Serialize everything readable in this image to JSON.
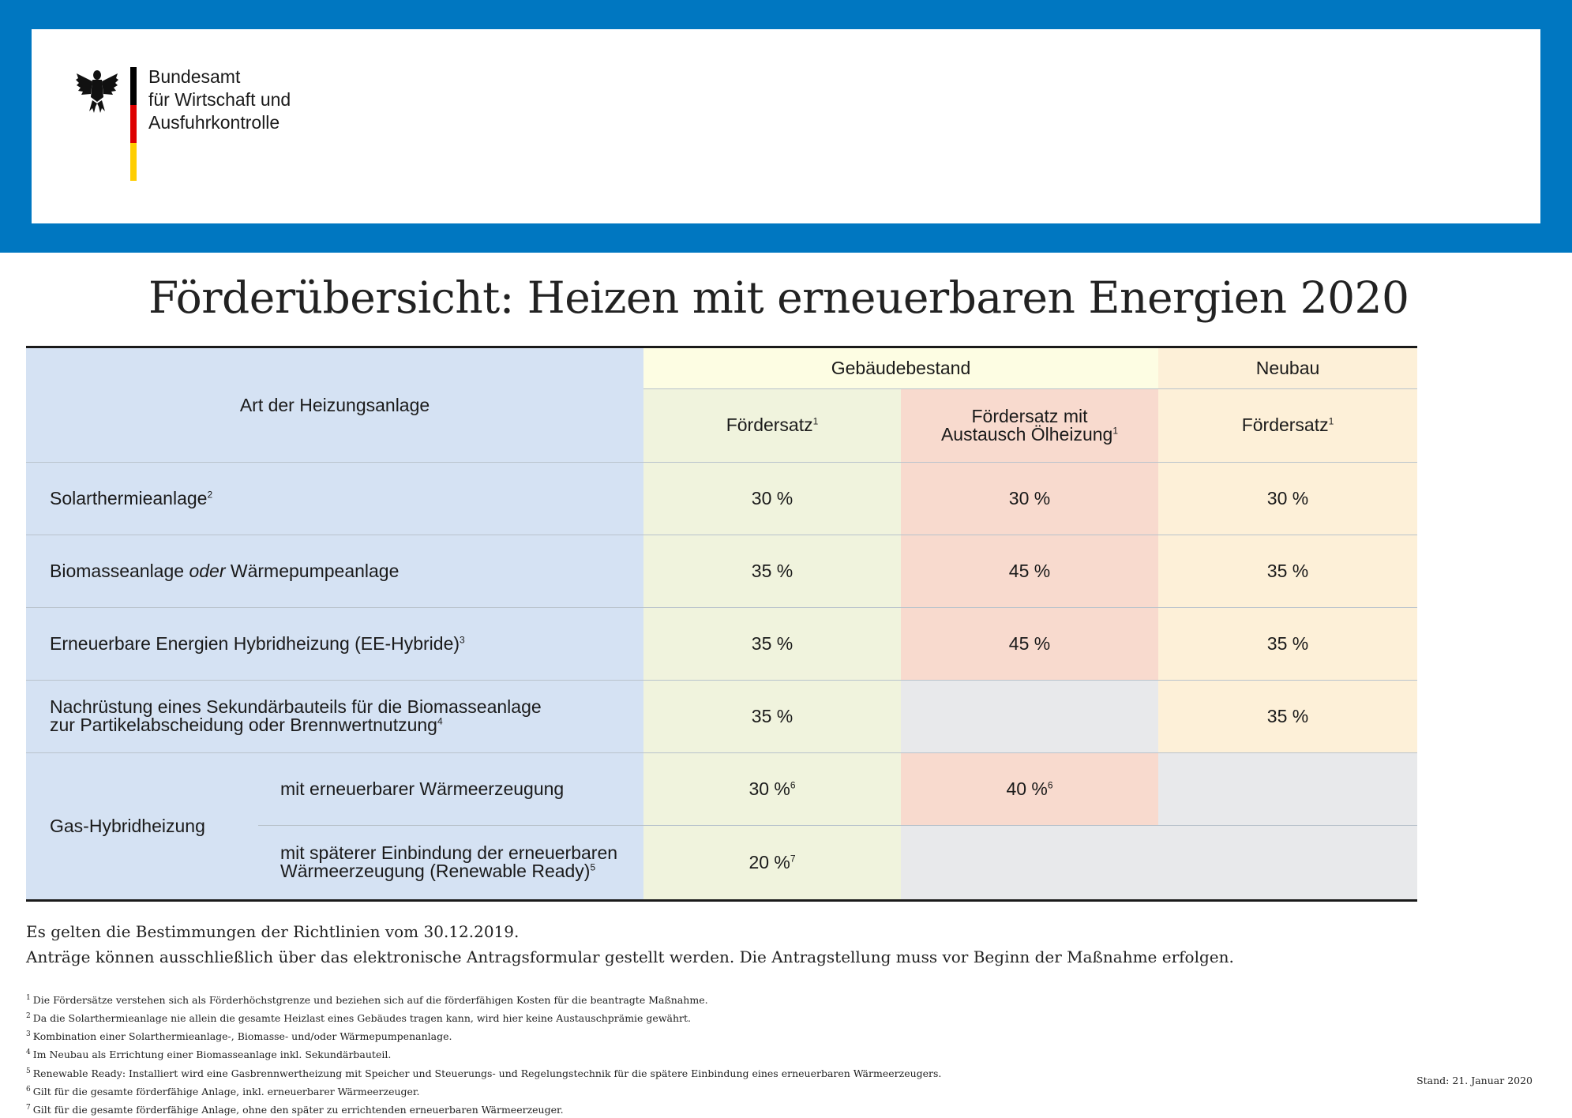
{
  "header": {
    "organization_lines": [
      "Bundesamt",
      "für Wirtschaft und",
      "Ausfuhrkontrolle"
    ],
    "logo_icon": "federal-eagle-icon",
    "flag_colors": [
      "#000000",
      "#dd0000",
      "#ffce00"
    ],
    "banner_color": "#0077c1"
  },
  "title": "Förderübersicht: Heizen mit erneuerbaren Energien 2020",
  "table": {
    "header": {
      "type_col": "Art der Heizungsanlage",
      "group_existing": "Gebäudebestand",
      "group_new": "Neubau",
      "rate_col": "Fördersatz",
      "rate_col_sup": "1",
      "rate_oil_line1": "Fördersatz mit",
      "rate_oil_line2": "Austausch Ölheizung",
      "rate_oil_sup": "1",
      "rate_new": "Fördersatz",
      "rate_new_sup": "1"
    },
    "rows": [
      {
        "label": "Solarthermieanlage",
        "sup": "2",
        "bestand": "30 %",
        "oel": "30 %",
        "neubau": "30 %"
      },
      {
        "label_pre": "Biomasseanlage ",
        "label_em": "oder",
        "label_post": " Wärmepumpeanlage",
        "bestand": "35 %",
        "oel": "45 %",
        "neubau": "35 %"
      },
      {
        "label": "Erneuerbare Energien Hybridheizung (EE-Hybride)",
        "sup": "3",
        "bestand": "35 %",
        "oel": "45 %",
        "neubau": "35 %"
      },
      {
        "label_line1": "Nachrüstung eines Sekundärbauteils für die Biomasseanlage",
        "label_line2": "zur Partikelabscheidung oder Brennwertnutzung",
        "sup": "4",
        "bestand": "35 %",
        "oel": "",
        "neubau": "35 %"
      }
    ],
    "gas": {
      "label": "Gas-Hybridheizung",
      "sub1": {
        "label": "mit erneuerbarer Wärmeerzeugung",
        "bestand": "30 %",
        "bestand_sup": "6",
        "oel": "40 %",
        "oel_sup": "6"
      },
      "sub2": {
        "label_line1": "mit späterer Einbindung der erneuerbaren",
        "label_line2": "Wärmeerzeugung (Renewable Ready)",
        "sup": "5",
        "bestand": "20 %",
        "bestand_sup": "7"
      }
    }
  },
  "notes": {
    "line1": "Es gelten die Bestimmungen der Richtlinien vom 30.12.2019.",
    "line2": "Anträge können ausschließlich über das elektronische Antragsformular gestellt werden. Die Antragstellung muss vor Beginn der Maßnahme erfolgen."
  },
  "footnotes": [
    {
      "num": "1",
      "text": "Die Fördersätze verstehen sich als Förderhöchstgrenze und beziehen sich auf die förderfähigen Kosten für die beantragte Maßnahme."
    },
    {
      "num": "2",
      "text": "Da die Solarthermieanlage nie allein die gesamte Heizlast eines Gebäudes tragen kann, wird hier keine Austauschprämie gewährt."
    },
    {
      "num": "3",
      "text": "Kombination einer Solarthermieanlage-, Biomasse- und/oder Wärmepumpenanlage."
    },
    {
      "num": "4",
      "text": "Im Neubau als Errichtung einer Biomasseanlage inkl. Sekundärbauteil."
    },
    {
      "num": "5",
      "text": "Renewable Ready: Installiert wird eine Gasbrennwertheizung mit Speicher und Steuerungs- und Regelungstechnik für die spätere Einbindung eines erneuerbaren Wärmeerzeugers."
    },
    {
      "num": "6",
      "text": "Gilt für die gesamte förderfähige Anlage, inkl. erneuerbarer Wärmeerzeuger."
    },
    {
      "num": "7",
      "text": "Gilt für die gesamte förderfähige Anlage, ohne den später zu errichtenden erneuerbaren Wärmeerzeuger."
    }
  ],
  "stand": "Stand: 21. Januar 2020"
}
